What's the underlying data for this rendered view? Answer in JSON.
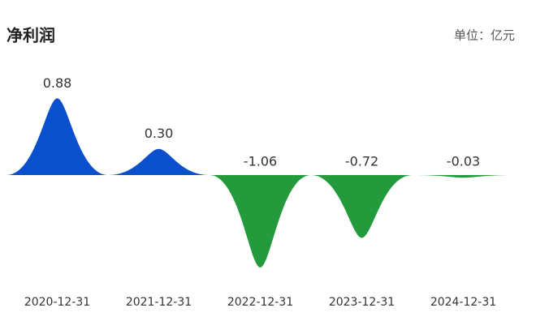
{
  "chart_data": {
    "type": "spike",
    "title": "净利润",
    "unit_label": "单位：亿元",
    "categories": [
      "2020-12-31",
      "2021-12-31",
      "2022-12-31",
      "2023-12-31",
      "2024-12-31"
    ],
    "values": [
      0.88,
      0.3,
      -1.06,
      -0.72,
      -0.03
    ],
    "value_labels": [
      "0.88",
      "0.30",
      "-1.06",
      "-0.72",
      "-0.03"
    ],
    "positive_color": "#0a4fcc",
    "negative_color": "#239a3b"
  }
}
